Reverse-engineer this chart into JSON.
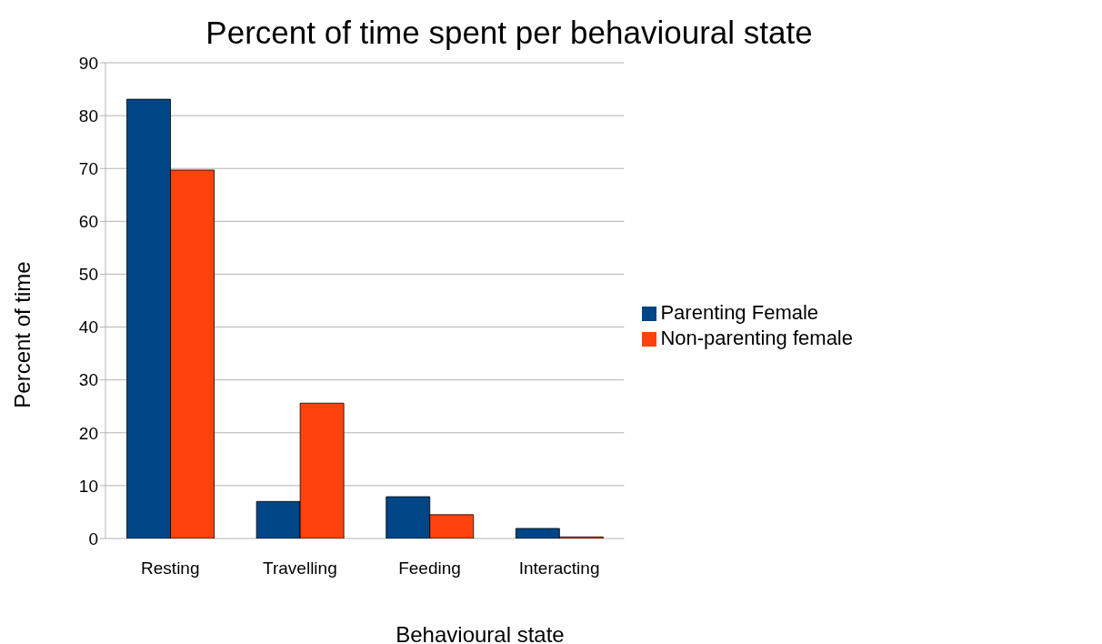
{
  "chart_data": {
    "type": "bar",
    "title": "Percent of time spent per behavioural state",
    "xlabel": "Behavioural state",
    "ylabel": "Percent of time",
    "categories": [
      "Resting",
      "Travelling",
      "Feeding",
      "Interacting"
    ],
    "series": [
      {
        "name": "Parenting Female",
        "color": "#004586",
        "values": [
          83.1,
          7.0,
          7.9,
          1.9
        ]
      },
      {
        "name": "Non-parenting female",
        "color": "#ff420e",
        "values": [
          69.7,
          25.6,
          4.5,
          0.3
        ]
      }
    ],
    "ylim": [
      0,
      90
    ],
    "yticks": [
      0,
      10,
      20,
      30,
      40,
      50,
      60,
      70,
      80,
      90
    ],
    "grid": "y",
    "legend": "right"
  }
}
